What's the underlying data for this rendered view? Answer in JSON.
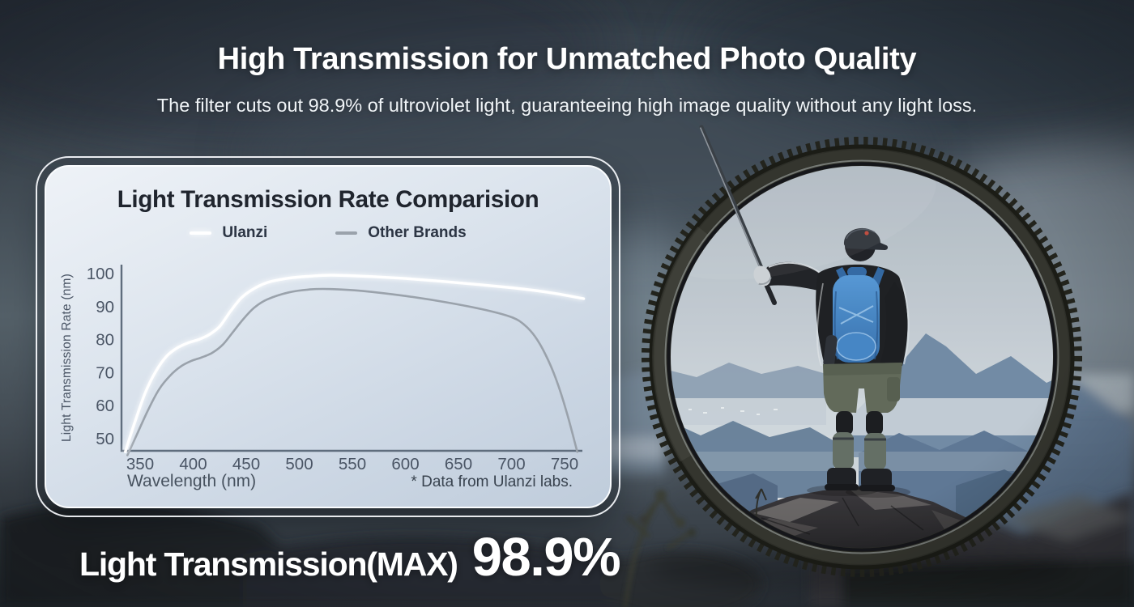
{
  "header": {
    "title": "High Transmission for Unmatched Photo Quality",
    "subtitle": "The filter cuts out 98.9% of ultroviolet light, guaranteeing high image quality without any light loss."
  },
  "card": {
    "title": "Light Transmission Rate Comparision"
  },
  "chart_data": {
    "type": "line",
    "title": "Light Transmission Rate Comparision",
    "xlabel": "Wavelength (nm)",
    "ylabel": "Light Transmission Rate (nm)",
    "source_note": "* Data from Ulanzi labs.",
    "x_ticks": [
      350,
      400,
      450,
      500,
      550,
      600,
      650,
      700,
      750
    ],
    "y_ticks": [
      50,
      60,
      70,
      80,
      90,
      100
    ],
    "xlim": [
      334,
      772
    ],
    "ylim": [
      45,
      103
    ],
    "grid": false,
    "legend_position": "top",
    "axis_color": "#5f6d7d",
    "tick_color": "#4a5565",
    "series": [
      {
        "name": "Ulanzi",
        "color": "#ffffff",
        "points": [
          [
            336,
            46
          ],
          [
            345,
            55
          ],
          [
            355,
            64
          ],
          [
            365,
            70.5
          ],
          [
            375,
            75
          ],
          [
            385,
            77.5
          ],
          [
            395,
            79
          ],
          [
            405,
            80
          ],
          [
            415,
            81.5
          ],
          [
            425,
            84
          ],
          [
            435,
            88.5
          ],
          [
            445,
            92.5
          ],
          [
            455,
            95
          ],
          [
            470,
            97.3
          ],
          [
            490,
            98.6
          ],
          [
            510,
            99.2
          ],
          [
            530,
            99.5
          ],
          [
            560,
            99.2
          ],
          [
            600,
            98.5
          ],
          [
            650,
            97.2
          ],
          [
            700,
            95.7
          ],
          [
            735,
            94.3
          ],
          [
            768,
            92.4
          ]
        ]
      },
      {
        "name": "Other Brands",
        "color": "#9aa2ab",
        "points": [
          [
            338,
            45
          ],
          [
            348,
            52
          ],
          [
            358,
            59
          ],
          [
            368,
            65
          ],
          [
            378,
            69
          ],
          [
            388,
            71.8
          ],
          [
            398,
            73.5
          ],
          [
            408,
            74.6
          ],
          [
            418,
            76
          ],
          [
            428,
            78.5
          ],
          [
            438,
            82.5
          ],
          [
            448,
            86.5
          ],
          [
            458,
            89.8
          ],
          [
            470,
            92.2
          ],
          [
            490,
            94.3
          ],
          [
            510,
            95.2
          ],
          [
            530,
            95.3
          ],
          [
            560,
            94.7
          ],
          [
            600,
            93.2
          ],
          [
            640,
            91.2
          ],
          [
            675,
            89
          ],
          [
            700,
            86.8
          ],
          [
            712,
            84.5
          ],
          [
            722,
            81
          ],
          [
            732,
            75.5
          ],
          [
            742,
            68
          ],
          [
            752,
            58
          ],
          [
            762,
            46
          ]
        ]
      }
    ]
  },
  "caption": {
    "label": "Light Transmission(MAX)",
    "value": "98.9%"
  },
  "palette": {
    "background_dark": "#39434d",
    "card_top": "#eef2f7",
    "card_bottom": "#bfccdb",
    "ring_black": "#2d2e28",
    "backpack_blue": "#3f86c9",
    "accent_white": "#ffffff"
  }
}
